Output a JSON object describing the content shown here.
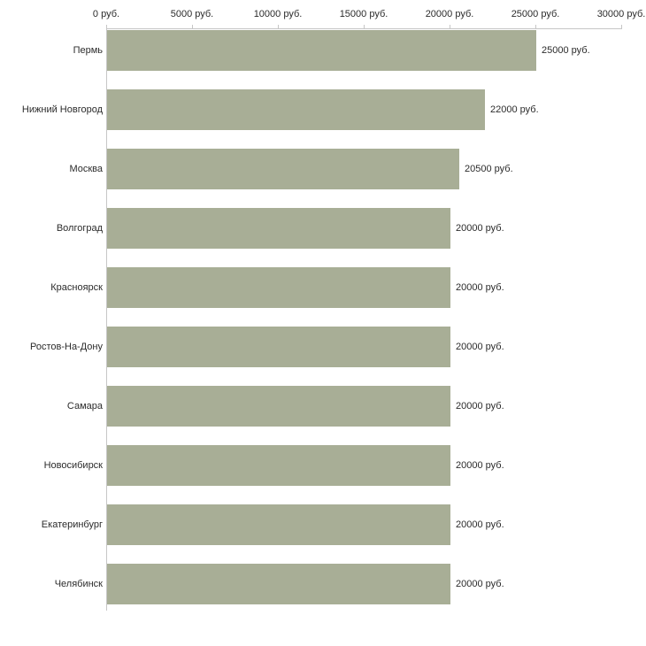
{
  "chart_data": {
    "type": "bar",
    "orientation": "horizontal",
    "title": "",
    "xlabel": "",
    "ylabel": "",
    "categories": [
      "Пермь",
      "Нижний Новгород",
      "Москва",
      "Волгоград",
      "Красноярск",
      "Ростов-На-Дону",
      "Самара",
      "Новосибирск",
      "Екатеринбург",
      "Челябинск"
    ],
    "values": [
      25000,
      22000,
      20500,
      20000,
      20000,
      20000,
      20000,
      20000,
      20000,
      20000
    ],
    "value_labels": [
      "25000 руб.",
      "22000 руб.",
      "20500 руб.",
      "20000 руб.",
      "20000 руб.",
      "20000 руб.",
      "20000 руб.",
      "20000 руб.",
      "20000 руб.",
      "20000 руб."
    ],
    "x_ticks": [
      0,
      5000,
      10000,
      15000,
      20000,
      25000,
      30000
    ],
    "x_tick_labels": [
      "0 руб.",
      "5000 руб.",
      "10000 руб.",
      "15000 руб.",
      "20000 руб.",
      "25000 руб.",
      "30000 руб."
    ],
    "xlim": [
      0,
      30000
    ],
    "grid": false,
    "legend": null,
    "bar_color": "#a8ae96",
    "axis_color": "#c6c6c6",
    "text_color": "#2b2b2b",
    "background_color": "#ffffff"
  }
}
